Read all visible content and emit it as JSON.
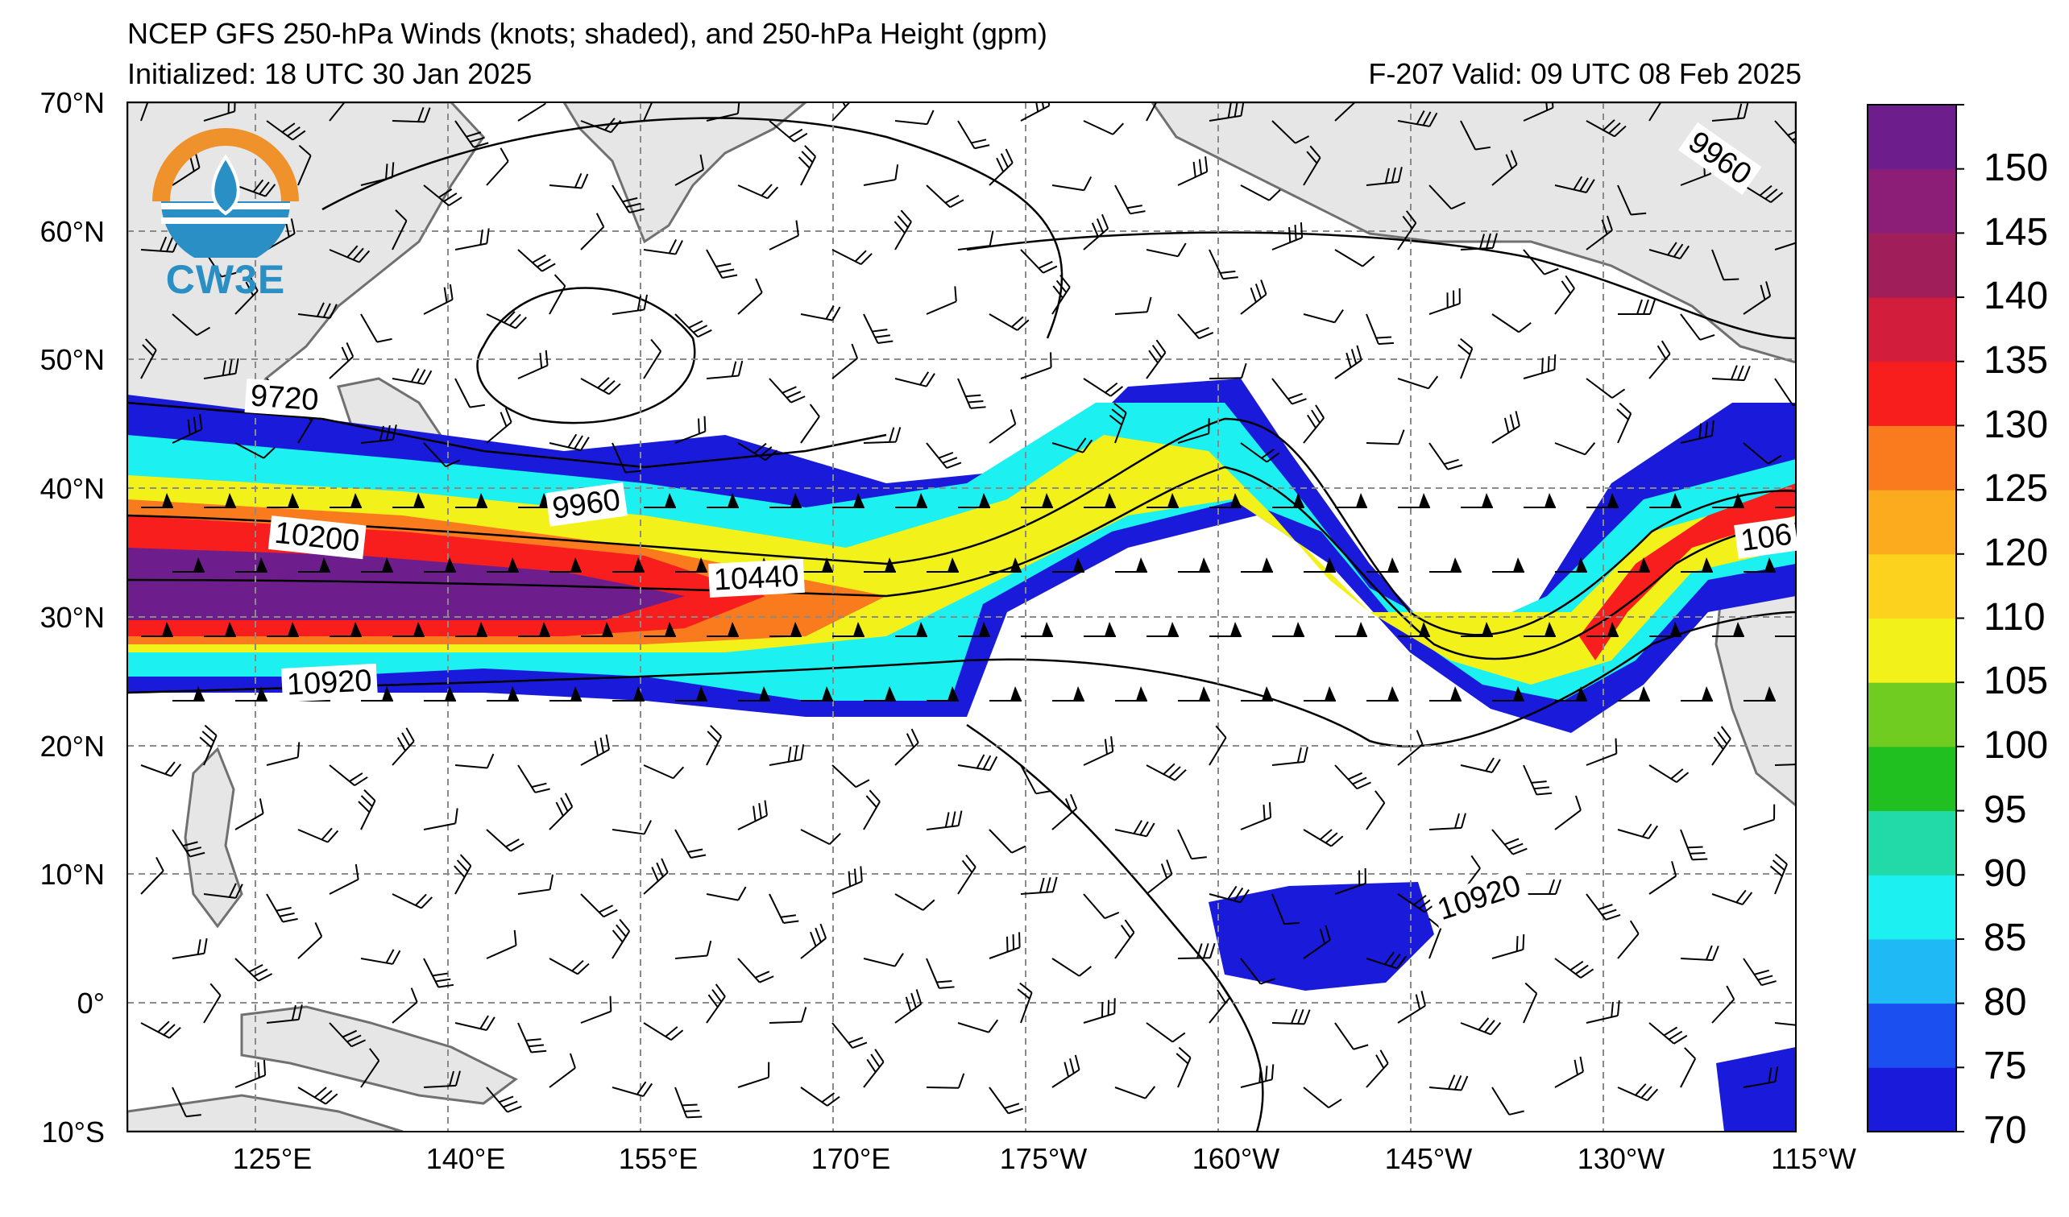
{
  "header": {
    "title": "NCEP GFS 250-hPa Winds (knots; shaded), and 250-hPa Height (gpm)",
    "initialized": "Initialized: 18 UTC 30 Jan 2025",
    "valid": "F-207  Valid: 09 UTC 08 Feb 2025"
  },
  "logo": {
    "text": "CW3E",
    "colors": {
      "orange": "#f0922b",
      "blue": "#2a8fc4"
    }
  },
  "axes": {
    "lat_labels": [
      "70°N",
      "60°N",
      "50°N",
      "40°N",
      "30°N",
      "20°N",
      "10°N",
      "0°",
      "10°S"
    ],
    "lon_labels": [
      "125°E",
      "140°E",
      "155°E",
      "170°E",
      "175°W",
      "160°W",
      "145°W",
      "130°W",
      "115°W"
    ]
  },
  "colorbar": {
    "ticks": [
      "70",
      "75",
      "80",
      "85",
      "90",
      "95",
      "100",
      "105",
      "110",
      "120",
      "125",
      "130",
      "135",
      "140",
      "145",
      "150"
    ],
    "colors": [
      "#1a1adb",
      "#1c4ff0",
      "#1fb9f5",
      "#1cf0f0",
      "#22d9a8",
      "#20c020",
      "#70cc20",
      "#f2f21a",
      "#fcd21e",
      "#fcaa1e",
      "#fa7a1e",
      "#f81e1e",
      "#d21e3c",
      "#a01e5a",
      "#8c1e78",
      "#6e1e8c"
    ]
  },
  "contour_labels": [
    "9720",
    "10200",
    "9960",
    "10440",
    "10920",
    "9960",
    "10920",
    "106"
  ],
  "map_colors": {
    "land": "#e6e6e6",
    "coast": "#707070",
    "grid": "#8a8a8a"
  }
}
